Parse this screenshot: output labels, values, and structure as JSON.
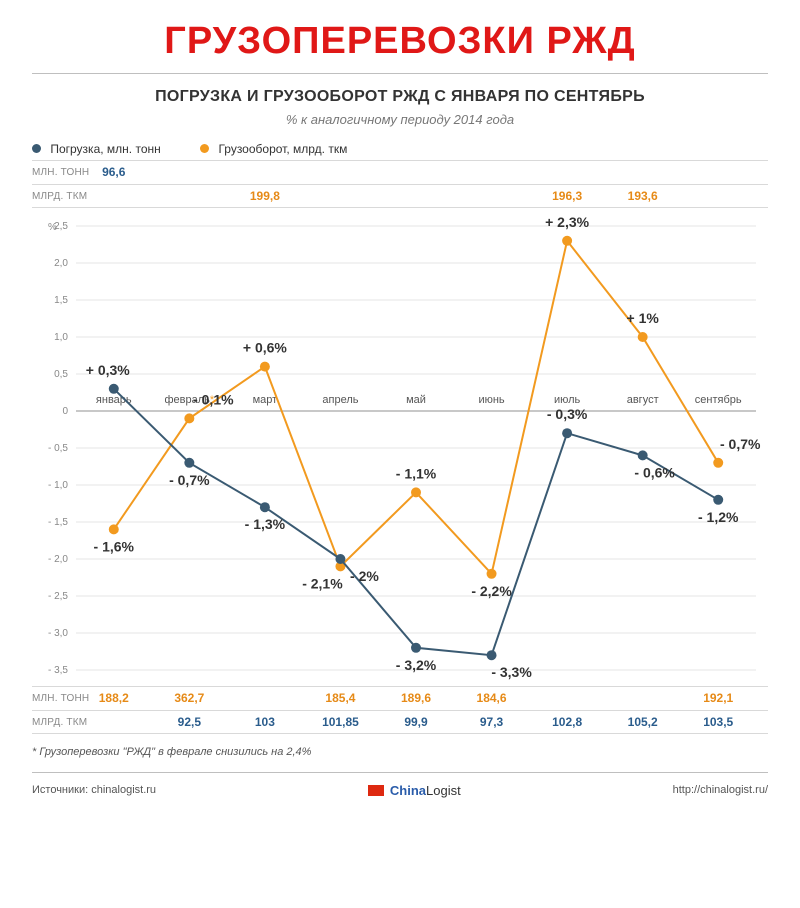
{
  "title": "ГРУЗОПЕРЕВОЗКИ РЖД",
  "title_color": "#e01817",
  "subtitle": "ПОГРУЗКА И ГРУЗООБОРОТ РЖД С ЯНВАРЯ ПО СЕНТЯБРЬ",
  "subtitle2": "% к аналогичному периоду 2014 года",
  "legend": {
    "s1": {
      "label": "Погрузка, млн. тонн",
      "color": "#3a5a72"
    },
    "s2": {
      "label": "Грузооборот, млрд. ткм",
      "color": "#f29a1f"
    }
  },
  "row_labels": {
    "mt": "млн. тонн",
    "bk": "млрд. ткм"
  },
  "top_mt": [
    "96,6",
    "",
    "",
    "",
    "",
    "",
    "",
    "",
    ""
  ],
  "top_bk": [
    "",
    "",
    "199,8",
    "",
    "",
    "",
    "196,3",
    "193,6",
    ""
  ],
  "bottom_mt": [
    "188,2",
    "362,7",
    "",
    "185,4",
    "189,6",
    "184,6",
    "",
    "",
    "192,1"
  ],
  "bottom_bk": [
    "",
    "92,5",
    "103",
    "101,85",
    "99,9",
    "97,3",
    "102,8",
    "105,2",
    "103,5"
  ],
  "top_mt_color": "#2a5c8c",
  "top_bk_color": "#e68a17",
  "bottom_mt_color": "#e68a17",
  "bottom_bk_color": "#2a5c8c",
  "chart": {
    "type": "line",
    "background": "#ffffff",
    "grid_color": "#e6e6e6",
    "axis_color": "#a8a8a8",
    "categories": [
      "январь",
      "февраль*",
      "март",
      "апрель",
      "май",
      "июнь",
      "июль",
      "август",
      "сентябрь"
    ],
    "month_asterisk_index": 1,
    "ylabel": "%",
    "ylim": [
      -3.5,
      2.5
    ],
    "ytick_step": 0.5,
    "yticks": [
      "2,5",
      "2,0",
      "1,5",
      "1,0",
      "0,5",
      "0",
      "- 0,5",
      "- 1,0",
      "- 1,5",
      "- 2,0",
      "- 2,5",
      "- 3,0",
      "- 3,5"
    ],
    "series1": {
      "name": "Погрузка",
      "color": "#3a5a72",
      "marker": "circle",
      "marker_size": 5,
      "line_width": 2,
      "values": [
        0.3,
        -0.7,
        -1.3,
        -2.0,
        -3.2,
        -3.3,
        -0.3,
        -0.6,
        -1.2
      ],
      "labels": [
        "+ 0,3%",
        "- 0,7%",
        "- 1,3%",
        "- 2%",
        "- 3,2%",
        "- 3,3%",
        "- 0,3%",
        "- 0,6%",
        "- 1,2%"
      ],
      "label_pos": [
        "above",
        "below",
        "below",
        "below",
        "below",
        "below",
        "above",
        "below",
        "below"
      ]
    },
    "series2": {
      "name": "Грузооборот",
      "color": "#f29a1f",
      "marker": "circle",
      "marker_size": 5,
      "line_width": 2,
      "values": [
        -1.6,
        -0.1,
        0.6,
        -2.1,
        -1.1,
        -2.2,
        2.3,
        1.0,
        -0.7
      ],
      "labels": [
        "- 1,6%",
        "- 0,1%",
        "+ 0,6%",
        "- 2,1%",
        "- 1,1%",
        "- 2,2%",
        "+ 2,3%",
        "+ 1%",
        "- 0,7%"
      ],
      "label_pos": [
        "below",
        "above",
        "above",
        "below",
        "above",
        "below",
        "above",
        "above",
        "above"
      ]
    },
    "tick_font_size": 10,
    "tick_color": "#888888",
    "month_font_size": 11,
    "data_label_font_size": 14,
    "data_label_weight": "bold"
  },
  "footnote": "* Грузоперевозки \"РЖД\" в феврале снизились на 2,4%",
  "footer": {
    "sources_label": "Источники:",
    "sources": "chinalogist.ru",
    "brand1": "China",
    "brand2": "Logist",
    "url": "http://chinalogist.ru/"
  }
}
